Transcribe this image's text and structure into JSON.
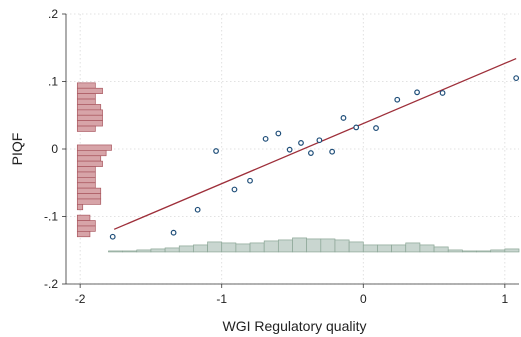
{
  "chart_data": {
    "type": "scatter",
    "xlabel": "WGI Regulatory quality",
    "ylabel": "PIQF",
    "xlim": [
      -2.1,
      1.1
    ],
    "ylim": [
      -0.2,
      0.2
    ],
    "xticks": [
      -2,
      -1,
      0,
      1
    ],
    "xtick_labels": [
      "-2",
      "-1",
      "0",
      "1"
    ],
    "yticks": [
      -0.2,
      -0.1,
      0,
      0.1,
      0.2
    ],
    "ytick_labels": [
      "-.2",
      "-.1",
      "0",
      ".1",
      ".2"
    ],
    "grid": true,
    "points": [
      {
        "x": -1.77,
        "y": -0.13
      },
      {
        "x": -1.34,
        "y": -0.124
      },
      {
        "x": -1.17,
        "y": -0.09
      },
      {
        "x": -1.04,
        "y": -0.003
      },
      {
        "x": -0.91,
        "y": -0.06
      },
      {
        "x": -0.8,
        "y": -0.047
      },
      {
        "x": -0.69,
        "y": 0.015
      },
      {
        "x": -0.6,
        "y": 0.023
      },
      {
        "x": -0.52,
        "y": -0.001
      },
      {
        "x": -0.44,
        "y": 0.009
      },
      {
        "x": -0.37,
        "y": -0.006
      },
      {
        "x": -0.31,
        "y": 0.013
      },
      {
        "x": -0.22,
        "y": -0.004
      },
      {
        "x": -0.14,
        "y": 0.046
      },
      {
        "x": -0.05,
        "y": 0.032
      },
      {
        "x": 0.09,
        "y": 0.031
      },
      {
        "x": 0.24,
        "y": 0.073
      },
      {
        "x": 0.38,
        "y": 0.084
      },
      {
        "x": 0.56,
        "y": 0.083
      },
      {
        "x": 1.08,
        "y": 0.105
      }
    ],
    "fit_line": {
      "x": [
        -1.76,
        1.08
      ],
      "y": [
        -0.119,
        0.134
      ]
    },
    "x_histogram": {
      "bins": [
        [
          -1.8,
          -1.7
        ],
        [
          -1.7,
          -1.6
        ],
        [
          -1.6,
          -1.5
        ],
        [
          -1.5,
          -1.4
        ],
        [
          -1.4,
          -1.3
        ],
        [
          -1.3,
          -1.2
        ],
        [
          -1.2,
          -1.1
        ],
        [
          -1.1,
          -1.0
        ],
        [
          -1.0,
          -0.9
        ],
        [
          -0.9,
          -0.8
        ],
        [
          -0.8,
          -0.7
        ],
        [
          -0.7,
          -0.6
        ],
        [
          -0.6,
          -0.5
        ],
        [
          -0.5,
          -0.4
        ],
        [
          -0.4,
          -0.3
        ],
        [
          -0.3,
          -0.2
        ],
        [
          -0.2,
          -0.1
        ],
        [
          -0.1,
          0.0
        ],
        [
          0.0,
          0.1
        ],
        [
          0.1,
          0.2
        ],
        [
          0.2,
          0.3
        ],
        [
          0.3,
          0.4
        ],
        [
          0.4,
          0.5
        ],
        [
          0.5,
          0.6
        ],
        [
          0.6,
          0.7
        ],
        [
          0.7,
          0.8
        ],
        [
          0.8,
          0.9
        ],
        [
          0.9,
          1.0
        ],
        [
          1.0,
          1.1
        ]
      ],
      "density": [
        0.1,
        0.1,
        0.2,
        0.3,
        0.4,
        0.6,
        0.7,
        1.0,
        0.9,
        0.8,
        0.9,
        1.1,
        1.2,
        1.4,
        1.3,
        1.3,
        1.2,
        1.0,
        0.7,
        0.7,
        0.7,
        0.9,
        0.7,
        0.5,
        0.2,
        0.1,
        0.1,
        0.2,
        0.3
      ]
    },
    "y_histogram": {
      "bins": [
        [
          0.09,
          0.098
        ],
        [
          0.082,
          0.09
        ],
        [
          0.074,
          0.082
        ],
        [
          0.066,
          0.074
        ],
        [
          0.058,
          0.066
        ],
        [
          0.05,
          0.058
        ],
        [
          0.042,
          0.05
        ],
        [
          0.034,
          0.042
        ],
        [
          0.026,
          0.034
        ],
        [
          -0.002,
          0.006
        ],
        [
          -0.01,
          -0.002
        ],
        [
          -0.018,
          -0.01
        ],
        [
          -0.026,
          -0.018
        ],
        [
          -0.034,
          -0.026
        ],
        [
          -0.042,
          -0.034
        ],
        [
          -0.05,
          -0.042
        ],
        [
          -0.058,
          -0.05
        ],
        [
          -0.066,
          -0.058
        ],
        [
          -0.074,
          -0.066
        ],
        [
          -0.082,
          -0.074
        ],
        [
          -0.09,
          -0.082
        ],
        [
          -0.106,
          -0.098
        ],
        [
          -0.114,
          -0.106
        ],
        [
          -0.122,
          -0.114
        ],
        [
          -0.13,
          -0.122
        ]
      ],
      "density": [
        1.0,
        1.4,
        1.0,
        1.0,
        1.3,
        1.4,
        1.4,
        1.4,
        1.0,
        1.9,
        1.6,
        1.3,
        1.4,
        1.0,
        1.0,
        1.0,
        1.0,
        1.3,
        1.3,
        1.3,
        0.3,
        0.7,
        1.0,
        1.0,
        0.7
      ]
    },
    "colors": {
      "points": "#1f4e79",
      "fit_line": "#9e2f3a",
      "x_hist_fill": "#c9d6d0",
      "x_hist_stroke": "#8aa595",
      "y_hist_fill": "#d7a4a8",
      "y_hist_stroke": "#a9575f"
    }
  }
}
